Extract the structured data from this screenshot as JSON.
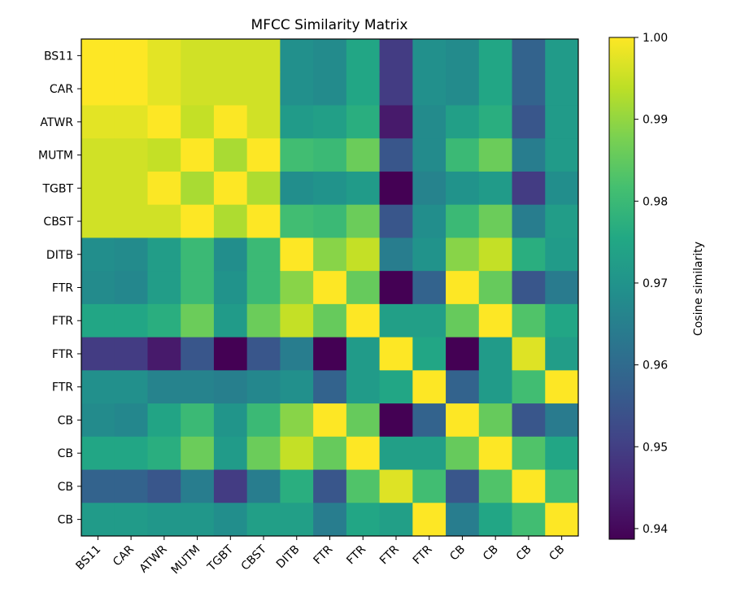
{
  "chart_data": {
    "type": "heatmap",
    "title": "MFCC Similarity Matrix",
    "xlabels": [
      "BS11",
      "CAR",
      "ATWR",
      "MUTM",
      "TGBT",
      "CBST",
      "DITB",
      "FTR",
      "FTR",
      "FTR",
      "FTR",
      "CB",
      "CB",
      "CB",
      "CB"
    ],
    "ylabels": [
      "BS11",
      "CAR",
      "ATWR",
      "MUTM",
      "TGBT",
      "CBST",
      "DITB",
      "FTR",
      "FTR",
      "FTR",
      "FTR",
      "CB",
      "CB",
      "CB",
      "CB"
    ],
    "colormap": "viridis",
    "colorbar": {
      "label": "Cosine similarity",
      "range": [
        0.9387,
        1.0
      ],
      "ticks": [
        "0.94",
        "0.95",
        "0.96",
        "0.97",
        "0.98",
        "0.99",
        "1.00"
      ]
    },
    "values": [
      [
        1.0,
        1.0,
        0.9975,
        0.9957,
        0.9957,
        0.9957,
        0.969,
        0.968,
        0.975,
        0.9495,
        0.969,
        0.968,
        0.975,
        0.958,
        0.972
      ],
      [
        1.0,
        1.0,
        0.9975,
        0.9957,
        0.9957,
        0.9957,
        0.969,
        0.968,
        0.975,
        0.9495,
        0.969,
        0.968,
        0.975,
        0.958,
        0.972
      ],
      [
        0.9975,
        0.9975,
        1.0,
        0.9945,
        0.9998,
        0.9957,
        0.972,
        0.973,
        0.977,
        0.943,
        0.968,
        0.973,
        0.977,
        0.955,
        0.972
      ],
      [
        0.9957,
        0.9957,
        0.9945,
        1.0,
        0.992,
        1.0,
        0.981,
        0.98,
        0.986,
        0.955,
        0.968,
        0.98,
        0.986,
        0.9645,
        0.972
      ],
      [
        0.9957,
        0.9957,
        0.9998,
        0.992,
        1.0,
        0.9925,
        0.9685,
        0.97,
        0.972,
        0.9385,
        0.966,
        0.97,
        0.972,
        0.9495,
        0.9685
      ],
      [
        0.9957,
        0.9957,
        0.9957,
        1.0,
        0.9925,
        1.0,
        0.981,
        0.98,
        0.986,
        0.955,
        0.9685,
        0.98,
        0.986,
        0.9645,
        0.9725
      ],
      [
        0.9685,
        0.968,
        0.9725,
        0.98,
        0.9685,
        0.98,
        1.0,
        0.989,
        0.9945,
        0.9645,
        0.97,
        0.989,
        0.9945,
        0.977,
        0.972
      ],
      [
        0.968,
        0.967,
        0.9725,
        0.98,
        0.97,
        0.98,
        0.989,
        1.0,
        0.9855,
        0.9385,
        0.958,
        1.0,
        0.9855,
        0.955,
        0.964
      ],
      [
        0.975,
        0.975,
        0.977,
        0.986,
        0.972,
        0.986,
        0.9945,
        0.9855,
        1.0,
        0.973,
        0.973,
        0.9855,
        1.0,
        0.983,
        0.975
      ],
      [
        0.9495,
        0.9495,
        0.943,
        0.955,
        0.9385,
        0.955,
        0.9645,
        0.9385,
        0.972,
        1.0,
        0.975,
        0.9385,
        0.972,
        0.997,
        0.9725
      ],
      [
        0.969,
        0.969,
        0.966,
        0.966,
        0.965,
        0.967,
        0.969,
        0.958,
        0.972,
        0.975,
        1.0,
        0.958,
        0.972,
        0.981,
        1.0
      ],
      [
        0.968,
        0.967,
        0.9745,
        0.98,
        0.9705,
        0.98,
        0.989,
        1.0,
        0.9855,
        0.9385,
        0.958,
        1.0,
        0.9855,
        0.955,
        0.964
      ],
      [
        0.975,
        0.975,
        0.977,
        0.986,
        0.972,
        0.986,
        0.9945,
        0.9855,
        1.0,
        0.973,
        0.973,
        0.9855,
        1.0,
        0.983,
        0.975
      ],
      [
        0.958,
        0.958,
        0.955,
        0.9645,
        0.9495,
        0.9645,
        0.977,
        0.955,
        0.983,
        0.997,
        0.981,
        0.955,
        0.983,
        1.0,
        0.981
      ],
      [
        0.972,
        0.972,
        0.971,
        0.971,
        0.9685,
        0.973,
        0.973,
        0.9645,
        0.975,
        0.973,
        1.0,
        0.9645,
        0.975,
        0.981,
        1.0
      ]
    ]
  }
}
